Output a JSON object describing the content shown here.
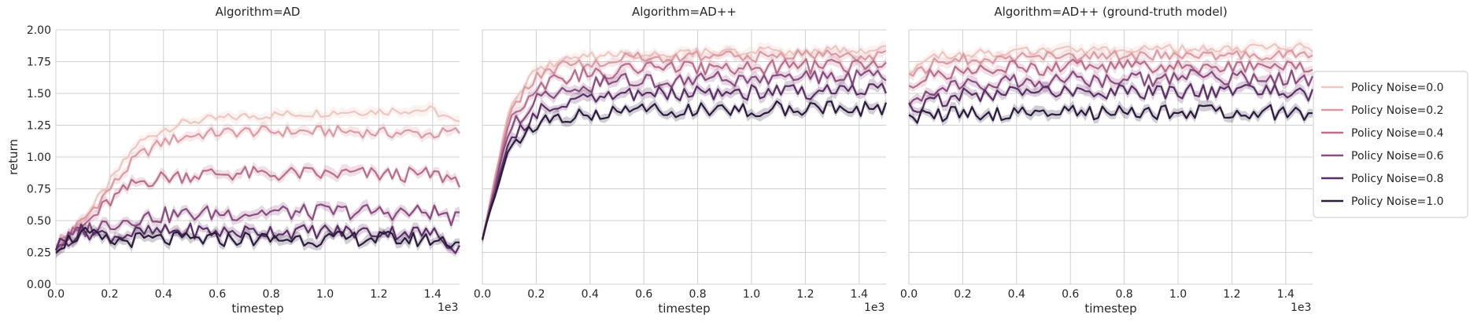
{
  "chart_data": {
    "type": "line",
    "panels": [
      {
        "title": "Algorithm=AD",
        "key": "AD"
      },
      {
        "title": "Algorithm=AD++",
        "key": "ADpp"
      },
      {
        "title": "Algorithm=AD++ (ground-truth model)",
        "key": "ADgt"
      }
    ],
    "xlabel": "timestep",
    "ylabel": "return",
    "x_offset_label": "1e3",
    "xlim": [
      0,
      1.5
    ],
    "ylim": [
      0,
      2.0
    ],
    "xticks": [
      "0.0",
      "0.2",
      "0.4",
      "0.6",
      "0.8",
      "1.0",
      "1.2",
      "1.4"
    ],
    "yticks": [
      "0.00",
      "0.25",
      "0.50",
      "0.75",
      "1.00",
      "1.25",
      "1.50",
      "1.75",
      "2.00"
    ],
    "grid": true,
    "legend_position": "right",
    "x": [
      0.0,
      0.1,
      0.2,
      0.3,
      0.4,
      0.5,
      0.6,
      0.7,
      0.8,
      0.9,
      1.0,
      1.1,
      1.2,
      1.3,
      1.4,
      1.5
    ],
    "series": [
      {
        "name": "Policy Noise=0.0",
        "color": "#edc7c0",
        "AD": [
          0.3,
          0.5,
          0.8,
          1.1,
          1.22,
          1.28,
          1.3,
          1.32,
          1.33,
          1.34,
          1.35,
          1.36,
          1.36,
          1.37,
          1.37,
          1.25
        ],
        "ADpp": [
          0.35,
          1.4,
          1.68,
          1.76,
          1.79,
          1.8,
          1.81,
          1.82,
          1.82,
          1.82,
          1.83,
          1.83,
          1.83,
          1.84,
          1.84,
          1.84
        ],
        "ADgt": [
          1.68,
          1.79,
          1.81,
          1.82,
          1.83,
          1.83,
          1.84,
          1.84,
          1.84,
          1.85,
          1.85,
          1.85,
          1.85,
          1.86,
          1.86,
          1.86
        ]
      },
      {
        "name": "Policy Noise=0.2",
        "color": "#da9ba3",
        "AD": [
          0.3,
          0.5,
          0.75,
          1.0,
          1.12,
          1.17,
          1.19,
          1.2,
          1.2,
          1.2,
          1.2,
          1.2,
          1.19,
          1.19,
          1.18,
          1.2
        ],
        "ADpp": [
          0.35,
          1.35,
          1.64,
          1.72,
          1.75,
          1.77,
          1.78,
          1.78,
          1.79,
          1.79,
          1.79,
          1.8,
          1.8,
          1.8,
          1.8,
          1.8
        ],
        "ADgt": [
          1.62,
          1.74,
          1.77,
          1.78,
          1.78,
          1.79,
          1.79,
          1.8,
          1.8,
          1.8,
          1.8,
          1.8,
          1.8,
          1.8,
          1.8,
          1.81
        ]
      },
      {
        "name": "Policy Noise=0.4",
        "color": "#bb6d8c",
        "AD": [
          0.3,
          0.45,
          0.65,
          0.8,
          0.84,
          0.86,
          0.87,
          0.87,
          0.86,
          0.87,
          0.86,
          0.87,
          0.86,
          0.86,
          0.86,
          0.82
        ],
        "ADpp": [
          0.35,
          1.3,
          1.55,
          1.63,
          1.66,
          1.68,
          1.69,
          1.7,
          1.7,
          1.71,
          1.71,
          1.71,
          1.71,
          1.72,
          1.72,
          1.72
        ],
        "ADgt": [
          1.55,
          1.65,
          1.68,
          1.69,
          1.7,
          1.7,
          1.71,
          1.71,
          1.71,
          1.71,
          1.72,
          1.72,
          1.72,
          1.72,
          1.72,
          1.73
        ]
      },
      {
        "name": "Policy Noise=0.6",
        "color": "#8b4c80",
        "AD": [
          0.3,
          0.42,
          0.48,
          0.52,
          0.54,
          0.55,
          0.56,
          0.56,
          0.57,
          0.56,
          0.57,
          0.57,
          0.57,
          0.56,
          0.57,
          0.5
        ],
        "ADpp": [
          0.35,
          1.22,
          1.45,
          1.53,
          1.57,
          1.59,
          1.6,
          1.61,
          1.61,
          1.62,
          1.62,
          1.62,
          1.63,
          1.63,
          1.63,
          1.64
        ],
        "ADgt": [
          1.45,
          1.55,
          1.58,
          1.59,
          1.6,
          1.61,
          1.61,
          1.61,
          1.62,
          1.62,
          1.62,
          1.62,
          1.62,
          1.63,
          1.63,
          1.6
        ]
      },
      {
        "name": "Policy Noise=0.8",
        "color": "#5c2f66",
        "AD": [
          0.3,
          0.42,
          0.38,
          0.4,
          0.41,
          0.42,
          0.41,
          0.41,
          0.42,
          0.41,
          0.42,
          0.41,
          0.41,
          0.41,
          0.4,
          0.28
        ],
        "ADpp": [
          0.35,
          1.15,
          1.35,
          1.43,
          1.47,
          1.48,
          1.49,
          1.5,
          1.5,
          1.5,
          1.51,
          1.51,
          1.51,
          1.51,
          1.52,
          1.52
        ],
        "ADgt": [
          1.38,
          1.45,
          1.48,
          1.49,
          1.5,
          1.5,
          1.51,
          1.51,
          1.51,
          1.51,
          1.52,
          1.51,
          1.51,
          1.52,
          1.51,
          1.48
        ]
      },
      {
        "name": "Policy Noise=1.0",
        "color": "#2d1b3f",
        "AD": [
          0.3,
          0.4,
          0.33,
          0.35,
          0.35,
          0.35,
          0.35,
          0.36,
          0.35,
          0.36,
          0.35,
          0.36,
          0.36,
          0.35,
          0.35,
          0.33
        ],
        "ADpp": [
          0.35,
          1.08,
          1.26,
          1.32,
          1.35,
          1.36,
          1.36,
          1.37,
          1.37,
          1.37,
          1.37,
          1.38,
          1.38,
          1.38,
          1.38,
          1.38
        ],
        "ADgt": [
          1.32,
          1.33,
          1.34,
          1.34,
          1.35,
          1.35,
          1.35,
          1.35,
          1.35,
          1.35,
          1.35,
          1.35,
          1.35,
          1.35,
          1.35,
          1.35
        ]
      }
    ]
  }
}
